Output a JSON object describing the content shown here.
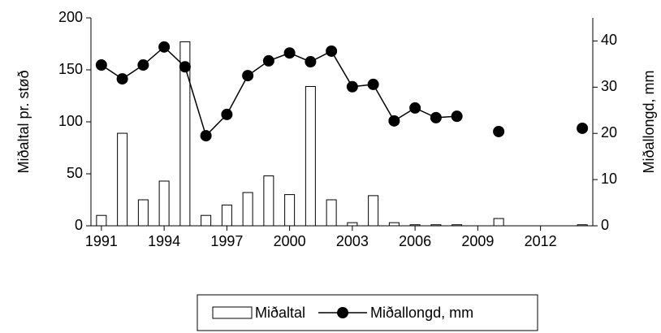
{
  "chart_data": {
    "type": "combo",
    "x": [
      1991,
      1992,
      1993,
      1994,
      1995,
      1996,
      1997,
      1998,
      1999,
      2000,
      2001,
      2002,
      2003,
      2004,
      2005,
      2006,
      2007,
      2008,
      2009,
      2010,
      2011,
      2012,
      2013,
      2014
    ],
    "series": [
      {
        "name": "Miðaltal",
        "type": "bar",
        "color": "#ffffff",
        "values": [
          10,
          89,
          25,
          43,
          177,
          10,
          20,
          32,
          48,
          30,
          134,
          25,
          3,
          29,
          3,
          1,
          1,
          1,
          null,
          7,
          null,
          null,
          null,
          1
        ]
      },
      {
        "name": "Miðallongd, mm",
        "type": "line",
        "axis": "y2",
        "color": "#000000",
        "values": [
          34.8,
          31.8,
          34.8,
          38.7,
          34.4,
          19.5,
          24.1,
          32.5,
          35.7,
          37.4,
          35.5,
          37.8,
          30.1,
          30.6,
          22.7,
          25.5,
          23.4,
          23.7,
          null,
          20.4,
          null,
          null,
          null,
          21.1
        ]
      }
    ],
    "xlim": [
      1990.5,
      2014.5
    ],
    "xticks": [
      1991,
      1994,
      1997,
      2000,
      2003,
      2006,
      2009,
      2012
    ],
    "ylabel": "Miðaltal pr. støð",
    "ylim": [
      0,
      200
    ],
    "yticks": [
      0,
      50,
      100,
      150,
      200
    ],
    "y2label": "Miðallongd, mm",
    "y2lim": [
      0,
      45
    ],
    "y2ticks": [
      0,
      10,
      20,
      30,
      40
    ],
    "legend": "bottom"
  }
}
